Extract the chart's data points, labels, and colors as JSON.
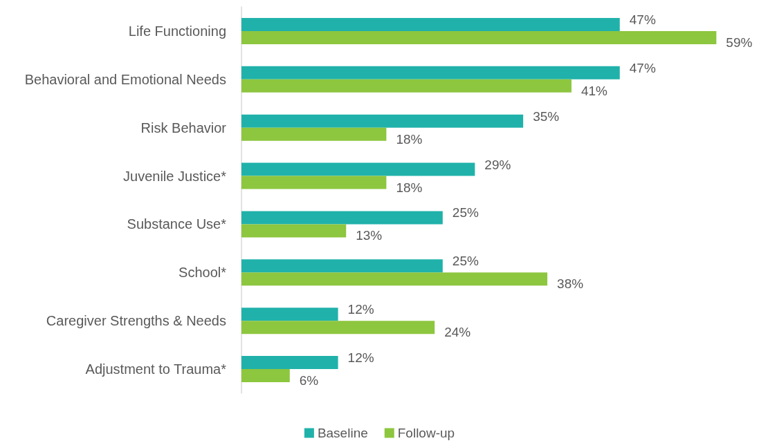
{
  "chart_data": {
    "type": "bar",
    "orientation": "horizontal",
    "legend": "bottom",
    "grid": false,
    "categories": [
      "Life Functioning",
      "Behavioral and Emotional Needs",
      "Risk Behavior",
      "Juvenile Justice*",
      "Substance Use*",
      "School*",
      "Caregiver Strengths & Needs",
      "Adjustment to Trauma*"
    ],
    "series": [
      {
        "name": "Baseline",
        "color": "#20b2aa",
        "values": [
          47,
          47,
          35,
          29,
          25,
          25,
          12,
          12
        ],
        "value_labels": [
          "47%",
          "47%",
          "35%",
          "29%",
          "25%",
          "25%",
          "12%",
          "12%"
        ]
      },
      {
        "name": "Follow-up",
        "color": "#8dc63f",
        "values": [
          59,
          41,
          18,
          18,
          13,
          38,
          24,
          6
        ],
        "value_labels": [
          "59%",
          "41%",
          "18%",
          "18%",
          "13%",
          "38%",
          "24%",
          "6%"
        ]
      }
    ]
  }
}
